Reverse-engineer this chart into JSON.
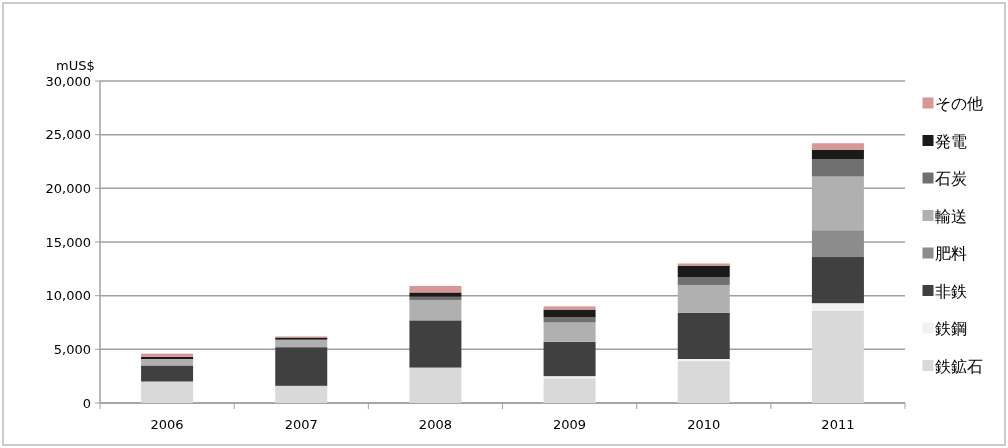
{
  "chart_data": {
    "type": "bar",
    "stacked": true,
    "ylabel": "mUS$",
    "categories": [
      "2006",
      "2007",
      "2008",
      "2009",
      "2010",
      "2011"
    ],
    "ylim": [
      0,
      30000
    ],
    "yticks": [
      {
        "value": 0,
        "label": "0"
      },
      {
        "value": 5000,
        "label": "5,000"
      },
      {
        "value": 10000,
        "label": "10,000"
      },
      {
        "value": 15000,
        "label": "15,000"
      },
      {
        "value": 20000,
        "label": "20,000"
      },
      {
        "value": 25000,
        "label": "25,000"
      },
      {
        "value": 30000,
        "label": "30,000"
      }
    ],
    "grid": "y",
    "legend": "right",
    "series": [
      {
        "name": "鉄鉱石",
        "color": "#d9d9d9",
        "values": [
          2000,
          1600,
          3300,
          2300,
          3900,
          8600
        ]
      },
      {
        "name": "鉄鋼",
        "color": "#f2f2f2",
        "values": [
          null,
          null,
          null,
          200,
          200,
          700
        ]
      },
      {
        "name": "非鉄",
        "color": "#404040",
        "values": [
          1500,
          3600,
          4400,
          3200,
          4300,
          4300
        ]
      },
      {
        "name": "肥料",
        "color": "#8c8c8c",
        "values": [
          null,
          null,
          null,
          null,
          null,
          2500
        ]
      },
      {
        "name": "輸送",
        "color": "#b0b0b0",
        "values": [
          600,
          700,
          1900,
          1800,
          2600,
          5000
        ]
      },
      {
        "name": "石炭",
        "color": "#707070",
        "values": [
          null,
          null,
          300,
          500,
          700,
          1600
        ]
      },
      {
        "name": "発電",
        "color": "#1a1a1a",
        "values": [
          200,
          200,
          400,
          700,
          1100,
          900
        ]
      },
      {
        "name": "その他",
        "color": "#d99694",
        "values": [
          300,
          100,
          600,
          300,
          200,
          600
        ]
      }
    ]
  }
}
